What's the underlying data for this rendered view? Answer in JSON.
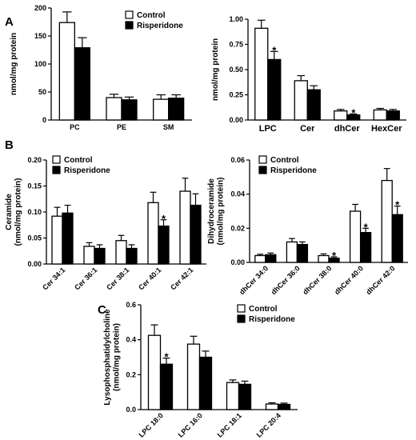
{
  "panel_labels": [
    "A",
    "B",
    "C"
  ],
  "legend": {
    "control": "Control",
    "risperidone": "Risperidone"
  },
  "chart_data": [
    {
      "type": "bar",
      "panel": "A",
      "ylabel": "nmol/mg protein",
      "categories": [
        "PC",
        "PE",
        "SM"
      ],
      "ylim": [
        0,
        200
      ],
      "yticks": [
        0,
        50,
        100,
        150,
        200
      ],
      "tick_decimals": 0,
      "series": [
        {
          "name": "Control",
          "values": [
            174,
            40,
            37
          ],
          "errors": [
            19,
            6,
            8
          ]
        },
        {
          "name": "Risperidone",
          "values": [
            129,
            36,
            39
          ],
          "errors": [
            18,
            5,
            6
          ]
        }
      ],
      "annotations": []
    },
    {
      "type": "bar",
      "panel": "A",
      "ylabel": "nmol/mg protein",
      "categories": [
        "LPC",
        "Cer",
        "dhCer",
        "HexCer"
      ],
      "ylim": [
        0,
        1.0
      ],
      "yticks": [
        0.0,
        0.25,
        0.5,
        0.75,
        1.0
      ],
      "tick_decimals": 2,
      "series": [
        {
          "name": "Control",
          "values": [
            0.91,
            0.39,
            0.09,
            0.1
          ],
          "errors": [
            0.08,
            0.05,
            0.015,
            0.015
          ]
        },
        {
          "name": "Risperidone",
          "values": [
            0.6,
            0.3,
            0.05,
            0.09
          ],
          "errors": [
            0.08,
            0.04,
            0.01,
            0.015
          ]
        }
      ],
      "annotations": [
        {
          "text": "*",
          "category": "LPC",
          "series": "Risperidone"
        },
        {
          "text": "*",
          "category": "dhCer",
          "series": "Risperidone"
        }
      ]
    },
    {
      "type": "bar",
      "panel": "B",
      "ylabel": "Ceramide (nmol/mg protein)",
      "categories": [
        "Cer 34:1",
        "Cer 36:1",
        "Cer 38:1",
        "Cer 40:1",
        "Cer 42:1"
      ],
      "ylim": [
        0,
        0.2
      ],
      "yticks": [
        0.0,
        0.05,
        0.1,
        0.15,
        0.2
      ],
      "tick_decimals": 2,
      "series": [
        {
          "name": "Control",
          "values": [
            0.092,
            0.034,
            0.045,
            0.118,
            0.14
          ],
          "errors": [
            0.017,
            0.007,
            0.01,
            0.02,
            0.025
          ]
        },
        {
          "name": "Risperidone",
          "values": [
            0.098,
            0.03,
            0.03,
            0.073,
            0.113
          ],
          "errors": [
            0.015,
            0.007,
            0.007,
            0.012,
            0.022
          ]
        }
      ],
      "annotations": [
        {
          "text": "*",
          "category": "Cer 40:1",
          "series": "Risperidone"
        }
      ]
    },
    {
      "type": "bar",
      "panel": "B",
      "ylabel": "Dihydroceramide (nmol/mg protein)",
      "categories": [
        "dhCer 34:0",
        "dhCer 36:0",
        "dhCer 38:0",
        "dhCer 40:0",
        "dhCer 42:0"
      ],
      "ylim": [
        0,
        0.06
      ],
      "yticks": [
        0.0,
        0.02,
        0.04,
        0.06
      ],
      "tick_decimals": 2,
      "series": [
        {
          "name": "Control",
          "values": [
            0.004,
            0.012,
            0.004,
            0.03,
            0.048
          ],
          "errors": [
            0.0008,
            0.002,
            0.001,
            0.004,
            0.007
          ]
        },
        {
          "name": "Risperidone",
          "values": [
            0.0045,
            0.0105,
            0.0025,
            0.0175,
            0.028
          ],
          "errors": [
            0.001,
            0.0015,
            0.0008,
            0.0025,
            0.005
          ]
        }
      ],
      "annotations": [
        {
          "text": "*",
          "category": "dhCer 38:0",
          "series": "Risperidone"
        },
        {
          "text": "*",
          "category": "dhCer 40:0",
          "series": "Risperidone"
        },
        {
          "text": "*",
          "category": "dhCer 42:0",
          "series": "Risperidone"
        }
      ]
    },
    {
      "type": "bar",
      "panel": "C",
      "ylabel": "Lysophosphatidylcholine (nmol/mg protein)",
      "categories": [
        "LPC 18:0",
        "LPC 16:0",
        "LPC 18:1",
        "LPC 20:4"
      ],
      "ylim": [
        0,
        0.6
      ],
      "yticks": [
        0.0,
        0.2,
        0.4,
        0.6
      ],
      "tick_decimals": 1,
      "series": [
        {
          "name": "Control",
          "values": [
            0.425,
            0.375,
            0.155,
            0.032
          ],
          "errors": [
            0.06,
            0.045,
            0.015,
            0.007
          ]
        },
        {
          "name": "Risperidone",
          "values": [
            0.26,
            0.3,
            0.145,
            0.03
          ],
          "errors": [
            0.035,
            0.035,
            0.018,
            0.007
          ]
        }
      ],
      "annotations": [
        {
          "text": "*",
          "category": "LPC 18:0",
          "series": "Risperidone"
        }
      ]
    }
  ]
}
